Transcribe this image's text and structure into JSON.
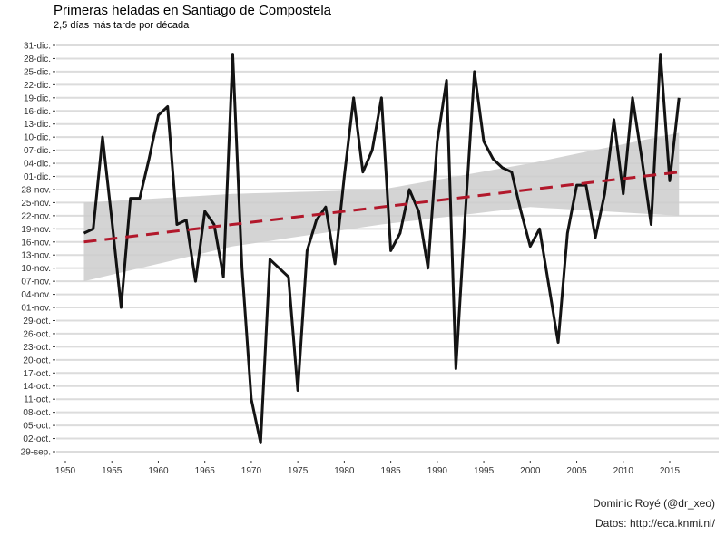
{
  "chart_data": {
    "type": "line",
    "title": "Primeras heladas en Santiago de Compostela",
    "subtitle": "2,5 días más tarde por década",
    "xlabel": "",
    "ylabel": "",
    "xlim": [
      1950,
      2019
    ],
    "ylim": [
      "09-29",
      "12-31"
    ],
    "x_ticks": [
      "1950",
      "1955",
      "1960",
      "1965",
      "1970",
      "1975",
      "1980",
      "1985",
      "1990",
      "1995",
      "2000",
      "2005",
      "2010",
      "2015"
    ],
    "y_ticks": [
      "29-sep.",
      "02-oct.",
      "05-oct.",
      "08-oct.",
      "11-oct.",
      "14-oct.",
      "17-oct.",
      "20-oct.",
      "23-oct.",
      "26-oct.",
      "29-oct.",
      "01-nov.",
      "04-nov.",
      "07-nov.",
      "10-nov.",
      "13-nov.",
      "16-nov.",
      "19-nov.",
      "22-nov.",
      "25-nov.",
      "28-nov.",
      "01-dic.",
      "04-dic.",
      "07-dic.",
      "10-dic.",
      "13-dic.",
      "16-dic.",
      "19-dic.",
      "22-dic.",
      "25-dic.",
      "28-dic.",
      "31-dic."
    ],
    "y_tick_dates": [
      "09-29",
      "10-02",
      "10-05",
      "10-08",
      "10-11",
      "10-14",
      "10-17",
      "10-20",
      "10-23",
      "10-26",
      "10-29",
      "11-01",
      "11-04",
      "11-07",
      "11-10",
      "11-13",
      "11-16",
      "11-19",
      "11-22",
      "11-25",
      "11-28",
      "12-01",
      "12-04",
      "12-07",
      "12-10",
      "12-13",
      "12-16",
      "12-19",
      "12-22",
      "12-25",
      "12-28",
      "12-31"
    ],
    "grid": "horizontal",
    "series": [
      {
        "style": "solid",
        "color": "#000000",
        "x": [
          1952,
          1953,
          1954,
          1955,
          1956,
          1957,
          1958,
          1959,
          1960,
          1961,
          1962,
          1963,
          1964,
          1965,
          1966,
          1967,
          1968,
          1969,
          1970,
          1971,
          1972,
          1973,
          1974,
          1975,
          1976,
          1977,
          1978,
          1979,
          1980,
          1981,
          1982,
          1983,
          1984,
          1985,
          1986,
          1987,
          1988,
          1989,
          1990,
          1991,
          1992,
          1993,
          1994,
          1995,
          1996,
          1997,
          1998,
          1999,
          2000,
          2001,
          2002,
          2003,
          2004,
          2005,
          2006,
          2007,
          2008,
          2009,
          2010,
          2011,
          2012,
          2013,
          2014,
          2015,
          2016
        ],
        "y": [
          "11-18",
          "11-19",
          "12-10",
          "11-21",
          "11-01",
          "11-26",
          "11-26",
          "12-05",
          "12-15",
          "12-17",
          "11-20",
          "11-21",
          "11-07",
          "11-23",
          "11-20",
          "11-08",
          "12-29",
          "11-10",
          "10-11",
          "10-01",
          "11-12",
          "11-10",
          "11-08",
          "10-13",
          "11-14",
          "11-21",
          "11-24",
          "11-11",
          "12-01",
          "12-19",
          "12-02",
          "12-07",
          "12-19",
          "11-14",
          "11-18",
          "11-28",
          "11-23",
          "11-10",
          "12-09",
          "12-23",
          "10-18",
          "11-22",
          "12-25",
          "12-09",
          "12-05",
          "12-03",
          "12-02",
          "11-23",
          "11-15",
          "11-19",
          "11-06",
          "10-24",
          "11-18",
          "11-29",
          "11-29",
          "11-17",
          "11-27",
          "12-14",
          "11-27",
          "12-19",
          "12-05",
          "11-20",
          "12-29",
          "11-30",
          "12-19"
        ]
      },
      {
        "style": "dashed",
        "color": "#b2182b",
        "x": [
          1952,
          2016
        ],
        "y": [
          "11-16",
          "12-02"
        ]
      }
    ],
    "confidence_band": {
      "color": "#cccccc",
      "x": [
        1952,
        1968,
        1984,
        2000,
        2016
      ],
      "lower": [
        "11-07",
        "11-15",
        "11-20",
        "11-24",
        "11-22"
      ],
      "upper": [
        "11-25",
        "11-27",
        "11-28",
        "12-04",
        "12-11"
      ]
    }
  },
  "caption": {
    "author": "Dominic Royé (@dr_xeo)",
    "source": "Datos: http://eca.knmi.nl/"
  }
}
